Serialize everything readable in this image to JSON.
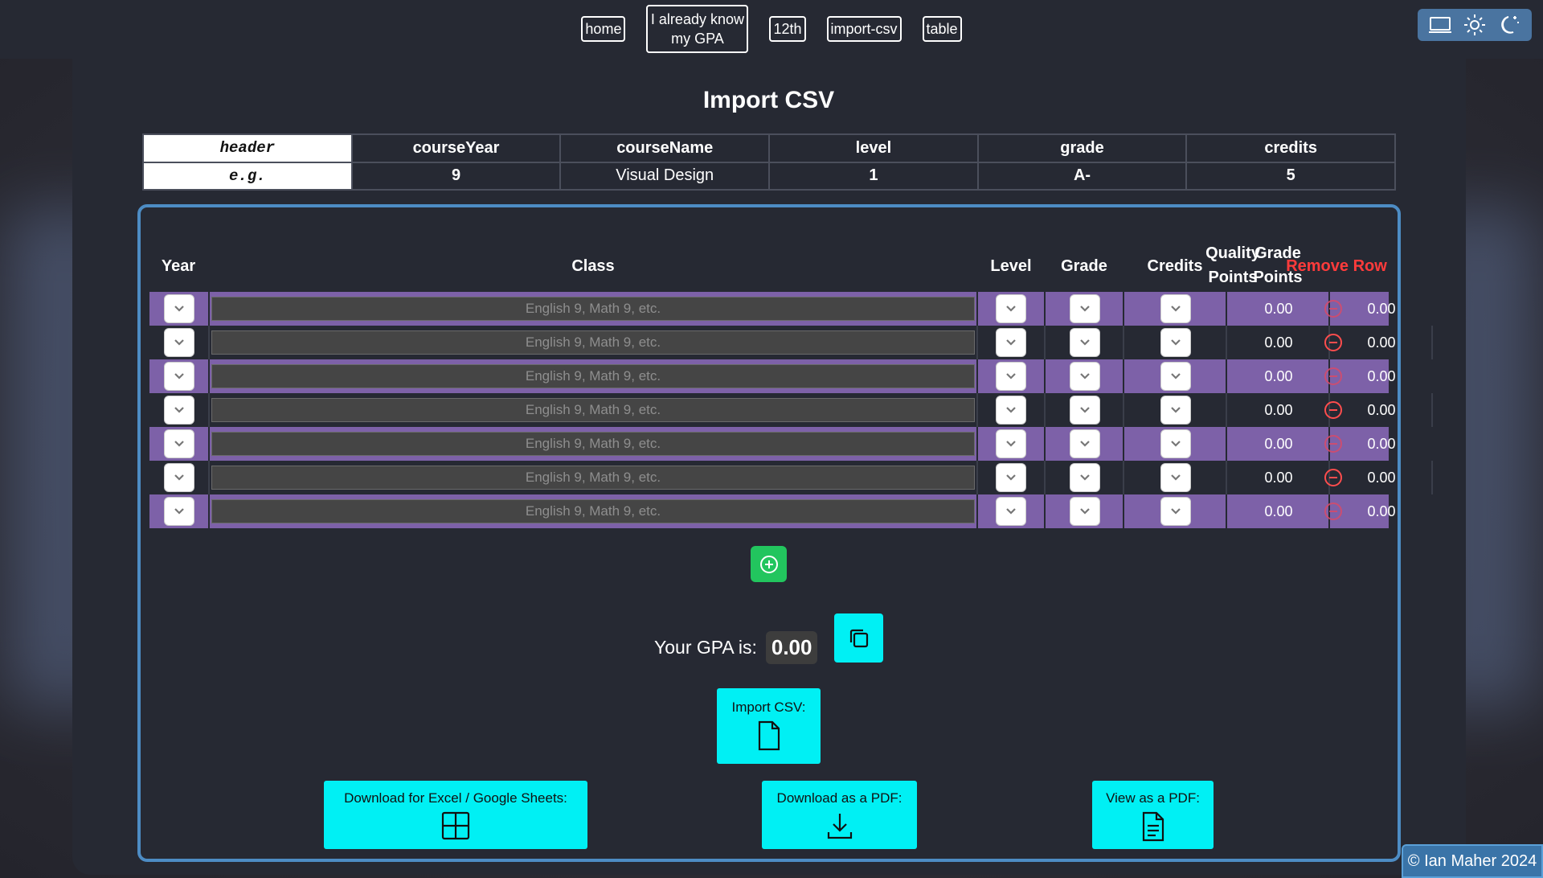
{
  "nav": {
    "links": [
      "home",
      "I already know my GPA",
      "12th",
      "import-csv",
      "table"
    ],
    "theme_icons": [
      "laptop-icon",
      "sun-icon",
      "moon-icon"
    ]
  },
  "page": {
    "title": "Import CSV"
  },
  "csv_header_table": {
    "header_label": "header",
    "example_label": "e.g.",
    "columns": [
      "courseYear",
      "courseName",
      "level",
      "grade",
      "credits"
    ],
    "example": [
      "9",
      "Visual Design",
      "1",
      "A-",
      "5"
    ]
  },
  "grid": {
    "headers": {
      "year": "Year",
      "class": "Class",
      "level": "Level",
      "grade": "Grade",
      "credits": "Credits",
      "grade_points_1": "Grade",
      "grade_points_2": "Points",
      "quality_points_1": "Quality",
      "quality_points_2": "Points",
      "remove": "Remove Row"
    },
    "class_placeholder": "English 9, Math 9, etc.",
    "rows": [
      {
        "grade_points": "0.00",
        "quality_points": "0.00"
      },
      {
        "grade_points": "0.00",
        "quality_points": "0.00"
      },
      {
        "grade_points": "0.00",
        "quality_points": "0.00"
      },
      {
        "grade_points": "0.00",
        "quality_points": "0.00"
      },
      {
        "grade_points": "0.00",
        "quality_points": "0.00"
      },
      {
        "grade_points": "0.00",
        "quality_points": "0.00"
      },
      {
        "grade_points": "0.00",
        "quality_points": "0.00"
      }
    ]
  },
  "gpa": {
    "label": "Your GPA is:",
    "value": "0.00"
  },
  "actions": {
    "import_csv": "Import CSV:",
    "download_excel": "Download for Excel / Google Sheets:",
    "download_pdf": "Download as a PDF:",
    "view_pdf": "View as a PDF:"
  },
  "footer": {
    "text": "© Ian Maher 2024"
  },
  "colors": {
    "accent": "#00f0f4",
    "row_purple": "#7d61a8",
    "add_green": "#22c55e",
    "remove_red": "#ff3b3b"
  }
}
